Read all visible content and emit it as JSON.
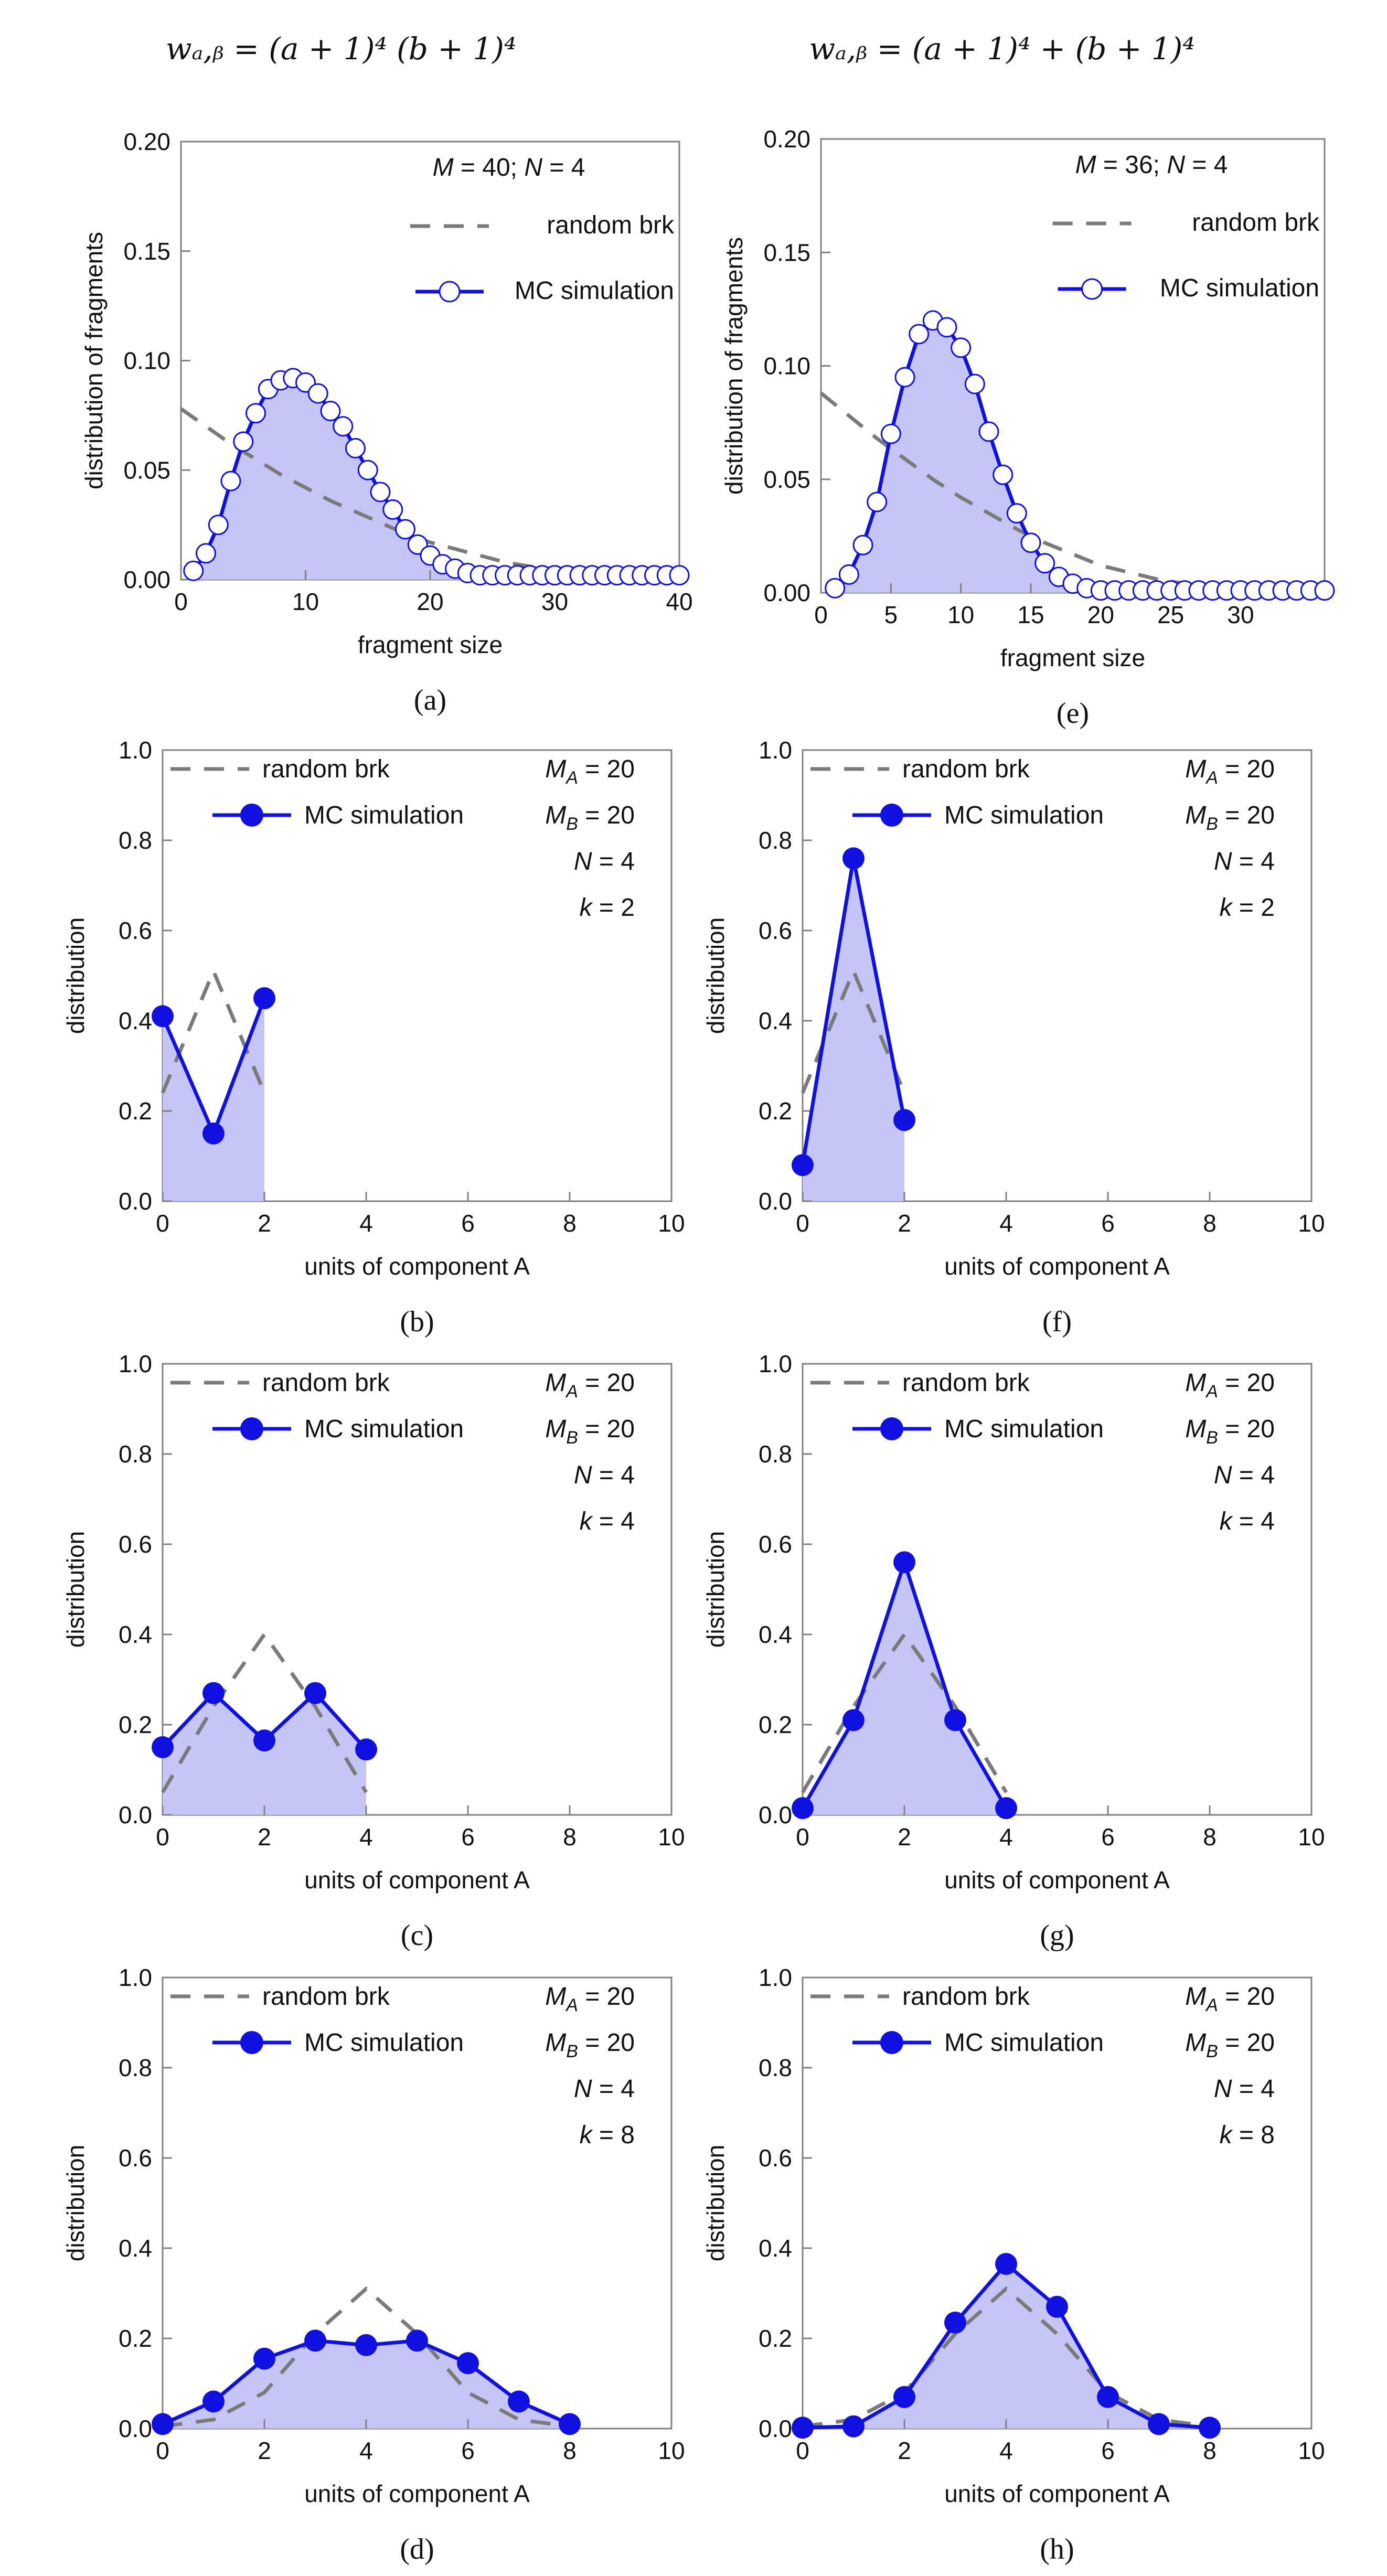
{
  "figure": {
    "column_titles": [
      "wₐ,ᵦ = (a + 1)⁴ (b + 1)⁴",
      "wₐ,ᵦ = (a + 1)⁴ + (b + 1)⁴"
    ]
  },
  "style": {
    "mc_color": "#1010e0",
    "mc_fill": "#c6c6f6",
    "random_color": "#7a7a7a",
    "axis_color": "#808080",
    "text_color": "#111111"
  },
  "chart_data": [
    {
      "id": "a",
      "type": "line",
      "caption": "(a)",
      "xlabel": "fragment size",
      "ylabel": "distribution of fragments",
      "xlim": [
        0,
        40
      ],
      "ylim": [
        0,
        0.2
      ],
      "xticks": [
        0,
        10,
        20,
        30,
        40
      ],
      "yticks": [
        0,
        0.05,
        0.1,
        0.15,
        0.2
      ],
      "ytick_labels": [
        "0.00",
        "0.05",
        "0.10",
        "0.15",
        "0.20"
      ],
      "marker": "open",
      "legend": {
        "random": "random brk",
        "mc": "MC simulation"
      },
      "params": [
        "M = 40; N = 4"
      ],
      "random_brk": {
        "x": [
          0,
          2,
          4,
          6,
          8,
          10,
          12,
          14,
          16,
          18,
          20,
          22,
          24,
          26,
          28,
          30,
          32,
          34,
          36,
          38,
          40
        ],
        "y": [
          0.078,
          0.07,
          0.062,
          0.055,
          0.048,
          0.042,
          0.036,
          0.031,
          0.026,
          0.021,
          0.017,
          0.014,
          0.011,
          0.008,
          0.006,
          0.0045,
          0.003,
          0.002,
          0.001,
          0.0005,
          0.0001
        ]
      },
      "mc_simulation": {
        "x": [
          1,
          2,
          3,
          4,
          5,
          6,
          7,
          8,
          9,
          10,
          11,
          12,
          13,
          14,
          15,
          16,
          17,
          18,
          19,
          20,
          21,
          22,
          23,
          24,
          25,
          26,
          27,
          28,
          29,
          30,
          31,
          32,
          33,
          34,
          35,
          36,
          37,
          38,
          39,
          40
        ],
        "y": [
          0.004,
          0.012,
          0.025,
          0.045,
          0.063,
          0.076,
          0.087,
          0.091,
          0.092,
          0.09,
          0.085,
          0.077,
          0.07,
          0.06,
          0.05,
          0.04,
          0.032,
          0.023,
          0.016,
          0.011,
          0.007,
          0.005,
          0.003,
          0.002,
          0.002,
          0.002,
          0.002,
          0.002,
          0.002,
          0.002,
          0.002,
          0.002,
          0.002,
          0.002,
          0.002,
          0.002,
          0.002,
          0.002,
          0.002,
          0.002
        ]
      }
    },
    {
      "id": "e",
      "type": "line",
      "caption": "(e)",
      "xlabel": "fragment size",
      "ylabel": "distribution of fragments",
      "xlim": [
        0,
        36
      ],
      "ylim": [
        0,
        0.2
      ],
      "xticks": [
        0,
        5,
        10,
        15,
        20,
        25,
        30
      ],
      "yticks": [
        0,
        0.05,
        0.1,
        0.15,
        0.2
      ],
      "ytick_labels": [
        "0.00",
        "0.05",
        "0.10",
        "0.15",
        "0.20"
      ],
      "marker": "open",
      "legend": {
        "random": "random brk",
        "mc": "MC simulation"
      },
      "params": [
        "M = 36; N = 4"
      ],
      "random_brk": {
        "x": [
          0,
          2,
          4,
          6,
          8,
          10,
          12,
          14,
          16,
          18,
          20,
          22,
          24,
          26,
          28,
          30,
          32,
          34,
          36
        ],
        "y": [
          0.088,
          0.078,
          0.068,
          0.059,
          0.05,
          0.042,
          0.035,
          0.028,
          0.022,
          0.017,
          0.012,
          0.009,
          0.006,
          0.004,
          0.002,
          0.001,
          0.0005,
          0.0002,
          0.0001
        ]
      },
      "mc_simulation": {
        "x": [
          1,
          2,
          3,
          4,
          5,
          6,
          7,
          8,
          9,
          10,
          11,
          12,
          13,
          14,
          15,
          16,
          17,
          18,
          19,
          20,
          21,
          22,
          23,
          24,
          25,
          26,
          27,
          28,
          29,
          30,
          31,
          32,
          33,
          34,
          35,
          36
        ],
        "y": [
          0.002,
          0.008,
          0.021,
          0.04,
          0.07,
          0.095,
          0.114,
          0.12,
          0.117,
          0.108,
          0.092,
          0.071,
          0.052,
          0.035,
          0.022,
          0.013,
          0.007,
          0.004,
          0.002,
          0.001,
          0.001,
          0.001,
          0.001,
          0.001,
          0.001,
          0.001,
          0.001,
          0.001,
          0.001,
          0.001,
          0.001,
          0.001,
          0.001,
          0.001,
          0.001,
          0.001
        ]
      }
    },
    {
      "id": "b",
      "type": "line",
      "caption": "(b)",
      "xlabel": "units of component A",
      "ylabel": "distribution",
      "xlim": [
        0,
        10
      ],
      "ylim": [
        0,
        1
      ],
      "xticks": [
        0,
        2,
        4,
        6,
        8,
        10
      ],
      "yticks": [
        0,
        0.2,
        0.4,
        0.6,
        0.8,
        1
      ],
      "ytick_labels": [
        "0.0",
        "0.2",
        "0.4",
        "0.6",
        "0.8",
        "1.0"
      ],
      "marker": "filled",
      "legend": {
        "random": "random brk",
        "mc": "MC simulation"
      },
      "params": [
        "M_A = 20",
        "M_B = 20",
        "N = 4",
        "k = 2"
      ],
      "random_brk": {
        "x": [
          0,
          1,
          2
        ],
        "y": [
          0.24,
          0.51,
          0.24
        ]
      },
      "mc_simulation": {
        "x": [
          0,
          1,
          2
        ],
        "y": [
          0.41,
          0.15,
          0.45
        ]
      }
    },
    {
      "id": "f",
      "type": "line",
      "caption": "(f)",
      "xlabel": "units of component A",
      "ylabel": "distribution",
      "xlim": [
        0,
        10
      ],
      "ylim": [
        0,
        1
      ],
      "xticks": [
        0,
        2,
        4,
        6,
        8,
        10
      ],
      "yticks": [
        0,
        0.2,
        0.4,
        0.6,
        0.8,
        1
      ],
      "ytick_labels": [
        "0.0",
        "0.2",
        "0.4",
        "0.6",
        "0.8",
        "1.0"
      ],
      "marker": "filled",
      "legend": {
        "random": "random brk",
        "mc": "MC simulation"
      },
      "params": [
        "M_A = 20",
        "M_B = 20",
        "N = 4",
        "k = 2"
      ],
      "random_brk": {
        "x": [
          0,
          1,
          2
        ],
        "y": [
          0.24,
          0.51,
          0.24
        ]
      },
      "mc_simulation": {
        "x": [
          0,
          1,
          2
        ],
        "y": [
          0.08,
          0.76,
          0.18
        ]
      }
    },
    {
      "id": "c",
      "type": "line",
      "caption": "(c)",
      "xlabel": "units of component A",
      "ylabel": "distribution",
      "xlim": [
        0,
        10
      ],
      "ylim": [
        0,
        1
      ],
      "xticks": [
        0,
        2,
        4,
        6,
        8,
        10
      ],
      "yticks": [
        0,
        0.2,
        0.4,
        0.6,
        0.8,
        1
      ],
      "ytick_labels": [
        "0.0",
        "0.2",
        "0.4",
        "0.6",
        "0.8",
        "1.0"
      ],
      "marker": "filled",
      "legend": {
        "random": "random brk",
        "mc": "MC simulation"
      },
      "params": [
        "M_A = 20",
        "M_B = 20",
        "N = 4",
        "k = 4"
      ],
      "random_brk": {
        "x": [
          0,
          1,
          2,
          3,
          4
        ],
        "y": [
          0.05,
          0.24,
          0.4,
          0.24,
          0.05
        ]
      },
      "mc_simulation": {
        "x": [
          0,
          1,
          2,
          3,
          4
        ],
        "y": [
          0.15,
          0.27,
          0.165,
          0.27,
          0.145
        ]
      }
    },
    {
      "id": "g",
      "type": "line",
      "caption": "(g)",
      "xlabel": "units of component A",
      "ylabel": "distribution",
      "xlim": [
        0,
        10
      ],
      "ylim": [
        0,
        1
      ],
      "xticks": [
        0,
        2,
        4,
        6,
        8,
        10
      ],
      "yticks": [
        0,
        0.2,
        0.4,
        0.6,
        0.8,
        1
      ],
      "ytick_labels": [
        "0.0",
        "0.2",
        "0.4",
        "0.6",
        "0.8",
        "1.0"
      ],
      "marker": "filled",
      "legend": {
        "random": "random brk",
        "mc": "MC simulation"
      },
      "params": [
        "M_A = 20",
        "M_B = 20",
        "N = 4",
        "k = 4"
      ],
      "random_brk": {
        "x": [
          0,
          1,
          2,
          3,
          4
        ],
        "y": [
          0.05,
          0.24,
          0.4,
          0.24,
          0.05
        ]
      },
      "mc_simulation": {
        "x": [
          0,
          1,
          2,
          3,
          4
        ],
        "y": [
          0.015,
          0.21,
          0.56,
          0.21,
          0.015
        ]
      }
    },
    {
      "id": "d",
      "type": "line",
      "caption": "(d)",
      "xlabel": "units of component A",
      "ylabel": "distribution",
      "xlim": [
        0,
        10
      ],
      "ylim": [
        0,
        1
      ],
      "xticks": [
        0,
        2,
        4,
        6,
        8,
        10
      ],
      "yticks": [
        0,
        0.2,
        0.4,
        0.6,
        0.8,
        1
      ],
      "ytick_labels": [
        "0.0",
        "0.2",
        "0.4",
        "0.6",
        "0.8",
        "1.0"
      ],
      "marker": "filled",
      "legend": {
        "random": "random brk",
        "mc": "MC simulation"
      },
      "params": [
        "M_A = 20",
        "M_B = 20",
        "N = 4",
        "k = 8"
      ],
      "random_brk": {
        "x": [
          0,
          1,
          2,
          3,
          4,
          5,
          6,
          7,
          8
        ],
        "y": [
          0.005,
          0.02,
          0.08,
          0.21,
          0.31,
          0.21,
          0.08,
          0.02,
          0.005
        ]
      },
      "mc_simulation": {
        "x": [
          0,
          1,
          2,
          3,
          4,
          5,
          6,
          7,
          8
        ],
        "y": [
          0.01,
          0.06,
          0.155,
          0.195,
          0.185,
          0.195,
          0.145,
          0.06,
          0.01
        ]
      }
    },
    {
      "id": "h",
      "type": "line",
      "caption": "(h)",
      "xlabel": "units of component A",
      "ylabel": "distribution",
      "xlim": [
        0,
        10
      ],
      "ylim": [
        0,
        1
      ],
      "xticks": [
        0,
        2,
        4,
        6,
        8,
        10
      ],
      "yticks": [
        0,
        0.2,
        0.4,
        0.6,
        0.8,
        1
      ],
      "ytick_labels": [
        "0.0",
        "0.2",
        "0.4",
        "0.6",
        "0.8",
        "1.0"
      ],
      "marker": "filled",
      "legend": {
        "random": "random brk",
        "mc": "MC simulation"
      },
      "params": [
        "M_A = 20",
        "M_B = 20",
        "N = 4",
        "k = 8"
      ],
      "random_brk": {
        "x": [
          0,
          1,
          2,
          3,
          4,
          5,
          6,
          7,
          8
        ],
        "y": [
          0.005,
          0.02,
          0.08,
          0.21,
          0.31,
          0.21,
          0.08,
          0.02,
          0.005
        ]
      },
      "mc_simulation": {
        "x": [
          0,
          1,
          2,
          3,
          4,
          5,
          6,
          7,
          8
        ],
        "y": [
          0.002,
          0.005,
          0.07,
          0.235,
          0.365,
          0.27,
          0.07,
          0.01,
          0.002
        ]
      }
    }
  ]
}
